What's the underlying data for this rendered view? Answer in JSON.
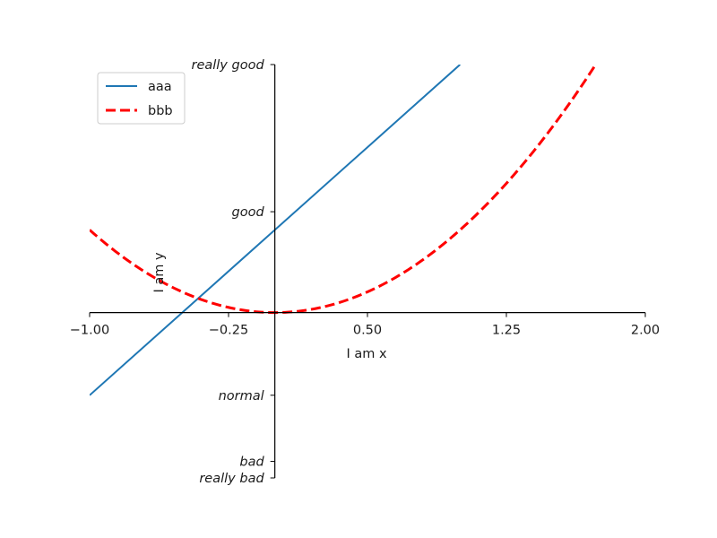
{
  "chart_data": {
    "type": "line",
    "title": "",
    "xlabel": "I am x",
    "ylabel": "I am y",
    "xlim": [
      -1,
      2
    ],
    "ylim": [
      -2,
      3
    ],
    "xticks": [
      {
        "value": -1.0,
        "label": "−1.00"
      },
      {
        "value": -0.25,
        "label": "−0.25"
      },
      {
        "value": 0.5,
        "label": "0.50"
      },
      {
        "value": 1.25,
        "label": "1.25"
      },
      {
        "value": 2.0,
        "label": "2.00"
      }
    ],
    "yticks": [
      {
        "value": -2.0,
        "label": "really bad"
      },
      {
        "value": -1.8,
        "label": "bad"
      },
      {
        "value": -1.0,
        "label": "normal"
      },
      {
        "value": 1.22,
        "label": "good"
      },
      {
        "value": 3.0,
        "label": "really good"
      }
    ],
    "spines": {
      "x_at": 0,
      "y_at": 0
    },
    "legend": {
      "position": "top-left"
    },
    "series": [
      {
        "name": "aaa",
        "color": "#1f77b4",
        "style": "solid",
        "x": [
          -1.0,
          -0.5,
          0.0,
          0.5,
          1.0
        ],
        "y": [
          -1.0,
          0.0,
          1.0,
          2.0,
          3.0
        ]
      },
      {
        "name": "bbb",
        "color": "#ff0000",
        "style": "dashed",
        "x": [
          -1.0,
          -0.75,
          -0.5,
          -0.25,
          0.0,
          0.25,
          0.5,
          0.75,
          1.0,
          1.25,
          1.5,
          1.75
        ],
        "y": [
          1.0,
          0.5625,
          0.25,
          0.0625,
          0.0,
          0.0625,
          0.25,
          0.5625,
          1.0,
          1.5625,
          2.25,
          3.0625
        ]
      }
    ]
  }
}
